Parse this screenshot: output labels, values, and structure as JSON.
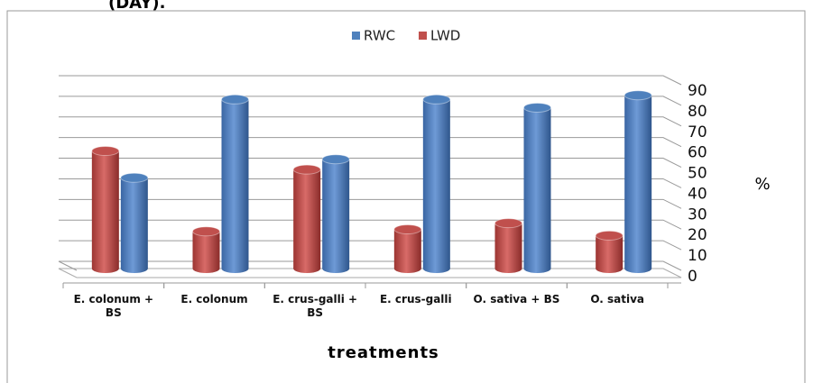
{
  "chart_data": {
    "type": "bar3d",
    "title": "(DAY).",
    "categories": [
      "E. colonum + BS",
      "E. colonum",
      "E. crus-galli + BS",
      "E. crus-galli",
      "O. sativa + BS",
      "O. sativa"
    ],
    "series": [
      {
        "name": "RWC",
        "color": "#4f81bd",
        "values": [
          44,
          82,
          53,
          82,
          78,
          84
        ]
      },
      {
        "name": "LWD",
        "color": "#c0504d",
        "values": [
          57,
          18,
          48,
          19,
          22,
          16
        ]
      }
    ],
    "ylim": [
      0,
      90
    ],
    "yticks": [
      0,
      10,
      20,
      30,
      40,
      50,
      60,
      70,
      80,
      90
    ],
    "ylabel": "%",
    "xlabel": "treatments",
    "grid": true,
    "legend": "top"
  }
}
